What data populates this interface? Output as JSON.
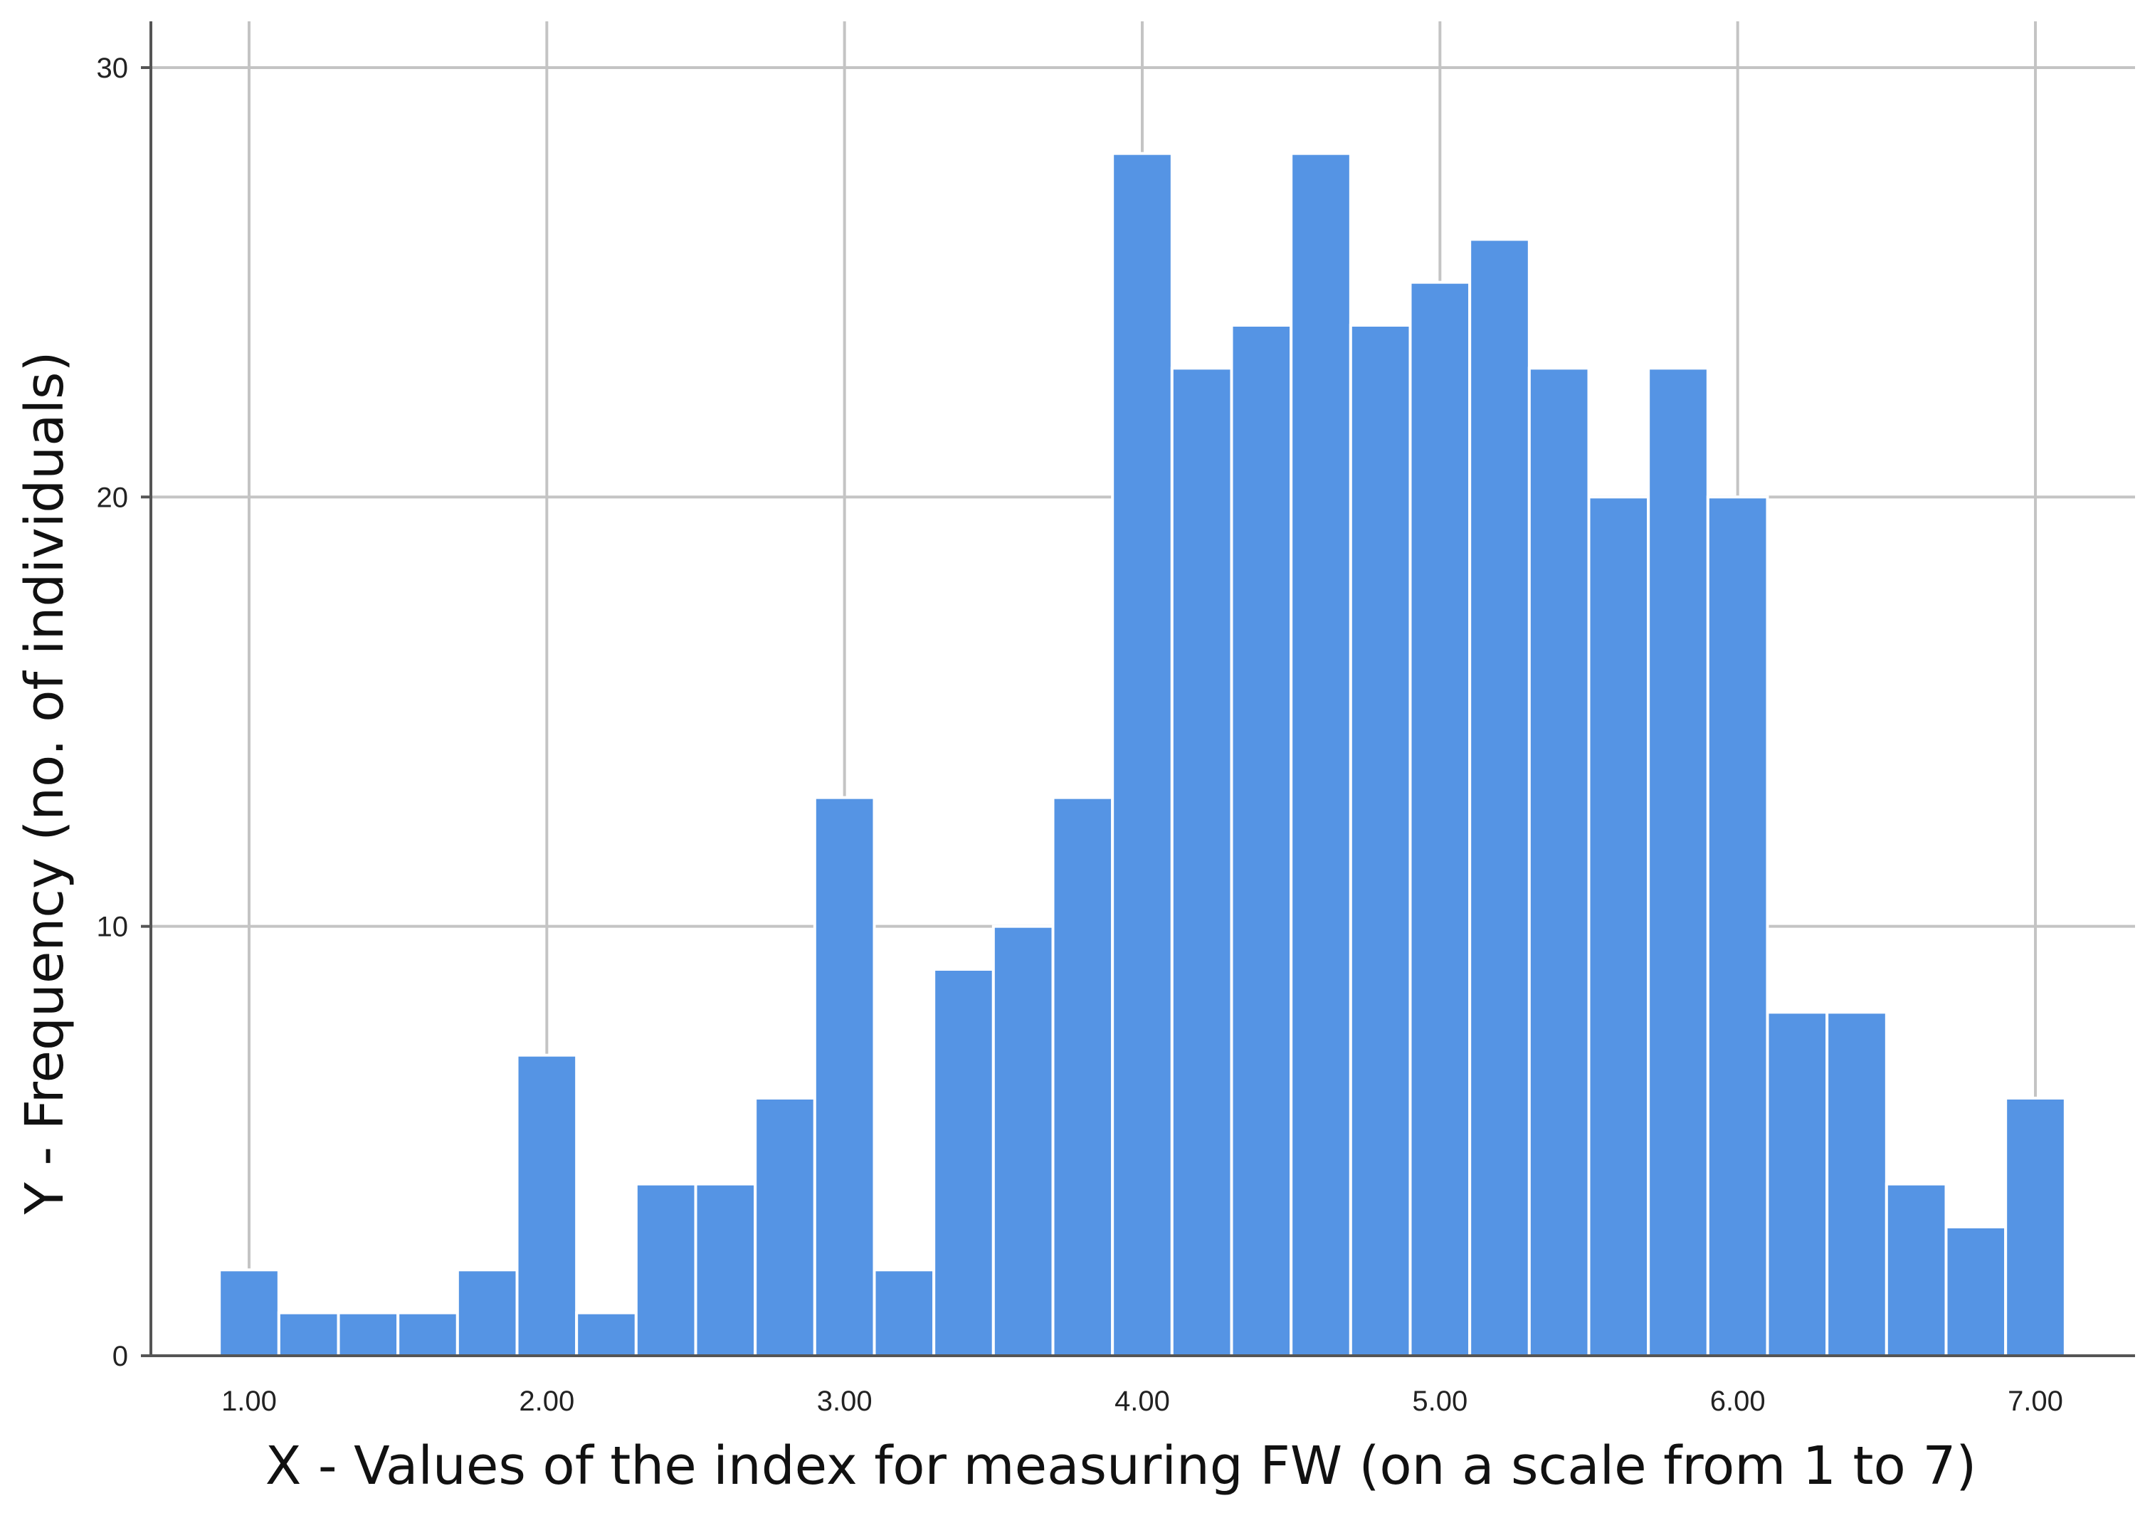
{
  "chart_data": {
    "type": "bar",
    "title": "",
    "xlabel": "X - Values of the index for measuring FW (on a scale from 1 to 7)",
    "ylabel": "Y - Frequency (no. of individuals)",
    "xlim": [
      0.9,
      7.1
    ],
    "ylim": [
      0,
      30
    ],
    "x_ticks": [
      "1.00",
      "2.00",
      "3.00",
      "4.00",
      "5.00",
      "6.00",
      "7.00"
    ],
    "y_ticks": [
      "0",
      "10",
      "20",
      "30"
    ],
    "grid": true,
    "bar_color": "#5594e4",
    "bin_width": 0.2,
    "bin_starts": [
      0.9,
      1.1,
      1.3,
      1.5,
      1.7,
      1.9,
      2.1,
      2.3,
      2.5,
      2.7,
      2.9,
      3.1,
      3.3,
      3.5,
      3.7,
      3.9,
      4.1,
      4.3,
      4.5,
      4.7,
      4.9,
      5.1,
      5.3,
      5.5,
      5.7,
      5.9,
      6.1,
      6.3,
      6.5,
      6.7,
      6.9
    ],
    "values": [
      2,
      1,
      1,
      1,
      2,
      7,
      1,
      4,
      4,
      6,
      13,
      2,
      9,
      10,
      13,
      28,
      23,
      24,
      28,
      24,
      25,
      26,
      23,
      20,
      23,
      20,
      8,
      8,
      4,
      3,
      6
    ]
  }
}
